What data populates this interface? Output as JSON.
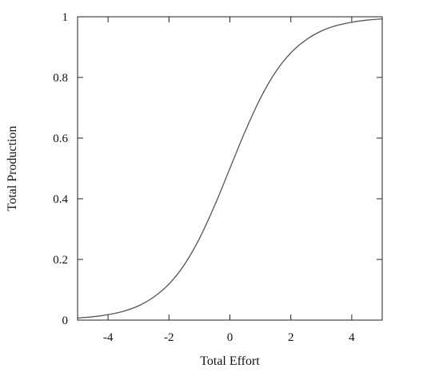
{
  "chart_data": {
    "type": "line",
    "title": "",
    "xlabel": "Total Effort",
    "ylabel": "Total Production",
    "xlim": [
      -5,
      5
    ],
    "ylim": [
      0,
      1
    ],
    "xticks": [
      -4,
      -2,
      0,
      2,
      4
    ],
    "yticks": [
      0,
      0.2,
      0.4,
      0.6,
      0.8,
      1
    ],
    "xtick_labels": [
      "-4",
      "-2",
      "0",
      "2",
      "4"
    ],
    "ytick_labels": [
      "0",
      "0.2",
      "0.4",
      "0.6",
      "0.8",
      "1"
    ],
    "grid": false,
    "legend": "none",
    "series": [
      {
        "color": "#555555",
        "x": [
          -5,
          -4.5,
          -4,
          -3.5,
          -3,
          -2.5,
          -2,
          -1.5,
          -1,
          -0.5,
          0,
          0.5,
          1,
          1.5,
          2,
          2.5,
          3,
          3.5,
          4,
          4.5,
          5
        ],
        "y": [
          0.007,
          0.011,
          0.018,
          0.029,
          0.047,
          0.076,
          0.119,
          0.182,
          0.269,
          0.378,
          0.5,
          0.622,
          0.731,
          0.818,
          0.881,
          0.924,
          0.953,
          0.971,
          0.982,
          0.989,
          0.993
        ]
      }
    ]
  }
}
